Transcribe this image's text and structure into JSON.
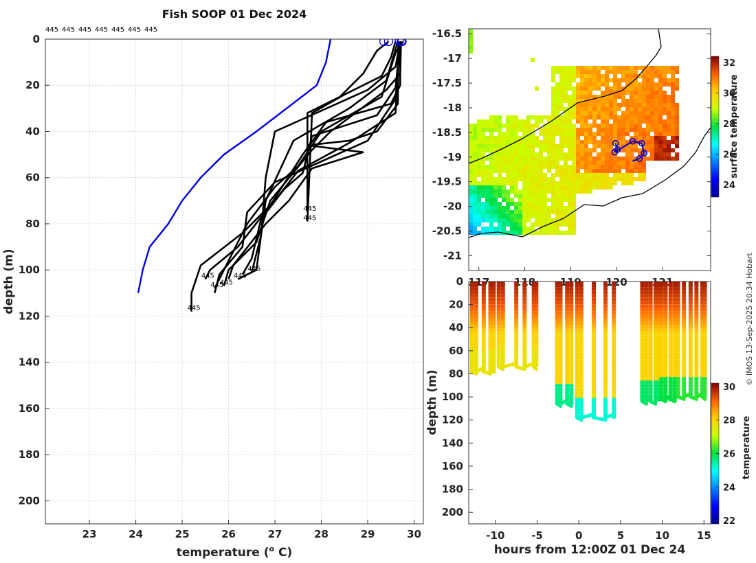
{
  "chart_data": [
    {
      "type": "line",
      "title": "Fish SOOP 01 Dec 2024",
      "xlabel": "temperature (",
      "xlabel_sup": "o",
      "xlabel_end": " C)",
      "ylabel": "depth (m)",
      "xlim": [
        22.05,
        30.2
      ],
      "ylim": [
        210,
        0
      ],
      "xticks": [
        23,
        24,
        25,
        26,
        27,
        28,
        29,
        30
      ],
      "yticks": [
        0,
        20,
        40,
        60,
        80,
        100,
        120,
        140,
        160,
        180,
        200
      ],
      "top_labels": [
        "445",
        "445",
        "445",
        "445",
        "445",
        "445",
        "445"
      ],
      "climatology": {
        "color": "#0000ee",
        "points": [
          [
            28.2,
            0
          ],
          [
            28.1,
            10
          ],
          [
            27.9,
            20
          ],
          [
            26.6,
            40
          ],
          [
            25.9,
            50
          ],
          [
            25.4,
            60
          ],
          [
            25.0,
            70
          ],
          [
            24.7,
            80
          ],
          [
            24.3,
            90
          ],
          [
            24.15,
            100
          ],
          [
            24.05,
            110
          ]
        ]
      },
      "profiles": [
        {
          "points": [
            [
              29.45,
              1
            ],
            [
              29.2,
              5
            ],
            [
              28.9,
              15
            ],
            [
              28.4,
              25
            ],
            [
              27.7,
              32
            ],
            [
              27.7,
              75
            ]
          ],
          "end_label": "445"
        },
        {
          "points": [
            [
              29.6,
              1
            ],
            [
              29.5,
              8
            ],
            [
              29.3,
              16
            ],
            [
              28.5,
              24
            ],
            [
              27.8,
              32
            ],
            [
              27.7,
              79
            ]
          ],
          "end_label": "445"
        },
        {
          "points": [
            [
              29.7,
              1
            ],
            [
              29.6,
              12
            ],
            [
              29.0,
              22
            ],
            [
              27.0,
              40
            ],
            [
              26.8,
              60
            ],
            [
              26.7,
              85
            ],
            [
              26.5,
              101
            ]
          ],
          "end_label": "445"
        },
        {
          "points": [
            [
              29.65,
              1
            ],
            [
              29.4,
              18
            ],
            [
              28.6,
              30
            ],
            [
              27.4,
              44
            ],
            [
              26.8,
              70
            ],
            [
              26.6,
              100
            ],
            [
              26.2,
              104
            ]
          ],
          "end_label": "445"
        },
        {
          "points": [
            [
              29.75,
              1
            ],
            [
              29.6,
              6
            ],
            [
              29.3,
              25
            ],
            [
              28.0,
              40
            ],
            [
              27.5,
              55
            ],
            [
              27.0,
              64
            ],
            [
              26.4,
              80
            ],
            [
              25.9,
              100
            ],
            [
              25.7,
              108
            ]
          ],
          "end_label": "445"
        },
        {
          "points": [
            [
              29.7,
              1
            ],
            [
              29.7,
              20
            ],
            [
              29.5,
              28
            ],
            [
              28.1,
              36
            ],
            [
              27.6,
              50
            ],
            [
              26.9,
              72
            ],
            [
              26.2,
              90
            ],
            [
              25.6,
              100
            ],
            [
              25.5,
              104
            ]
          ],
          "end_label": "445"
        },
        {
          "points": [
            [
              29.72,
              1
            ],
            [
              29.7,
              15
            ],
            [
              29.4,
              22
            ],
            [
              28.2,
              40
            ],
            [
              27.8,
              48
            ],
            [
              26.9,
              70
            ],
            [
              26.6,
              88
            ],
            [
              26.0,
              100
            ],
            [
              25.9,
              107
            ]
          ],
          "end_label": "445"
        },
        {
          "points": [
            [
              29.68,
              1
            ],
            [
              29.6,
              32
            ],
            [
              28.6,
              45
            ],
            [
              27.5,
              57
            ],
            [
              27.0,
              70
            ],
            [
              26.3,
              84
            ],
            [
              25.4,
              98
            ],
            [
              25.2,
              110
            ],
            [
              25.2,
              118
            ]
          ],
          "end_label": "445"
        },
        {
          "points": [
            [
              29.7,
              1
            ],
            [
              29.6,
              26
            ],
            [
              29.0,
              44
            ],
            [
              28.0,
              53
            ],
            [
              27.0,
              62
            ],
            [
              26.4,
              75
            ],
            [
              26.3,
              90
            ],
            [
              25.8,
              102
            ],
            [
              25.7,
              110
            ]
          ],
          "end_label": ""
        },
        {
          "points": [
            [
              29.66,
              1
            ],
            [
              29.65,
              28
            ],
            [
              29.2,
              40
            ],
            [
              28.6,
              44
            ],
            [
              27.7,
              46
            ],
            [
              28.9,
              49
            ],
            [
              27.8,
              56
            ],
            [
              27.3,
              70
            ],
            [
              26.8,
              80
            ],
            [
              26.1,
              98
            ],
            [
              26.0,
              104
            ]
          ],
          "end_label": ""
        },
        {
          "points": [
            [
              29.7,
              1
            ],
            [
              29.6,
              21
            ],
            [
              29.2,
              33
            ],
            [
              27.8,
              42
            ],
            [
              27.6,
              58
            ],
            [
              27.2,
              65
            ],
            [
              26.7,
              78
            ],
            [
              26.5,
              95
            ],
            [
              26.3,
              102
            ]
          ],
          "end_label": ""
        }
      ],
      "start_markers": [
        29.35,
        29.45,
        29.68,
        29.72,
        29.74
      ]
    },
    {
      "type": "heatmap",
      "title": "",
      "ylabel": "",
      "lon_ticks": [
        "117",
        "118",
        "119",
        "120",
        "121"
      ],
      "lat_ticks": [
        "-16.5",
        "-17",
        "-17.5",
        "-18",
        "-18.5",
        "-19",
        "-19.5",
        "-20",
        "-20.5",
        "-21"
      ],
      "lat_range": [
        -21.3,
        -16.4
      ],
      "colorbar": {
        "label": "surface temperature",
        "ticks": [
          "24",
          "26",
          "28",
          "30",
          "32"
        ],
        "range": [
          23.2,
          32.4
        ]
      },
      "track": [
        [
          119.98,
          -18.72
        ],
        [
          120.02,
          -18.85
        ],
        [
          119.96,
          -18.9
        ],
        [
          120.35,
          -18.68
        ],
        [
          120.55,
          -18.72
        ],
        [
          120.6,
          -18.92
        ],
        [
          120.5,
          -19.03
        ],
        [
          120.35,
          -19.08
        ]
      ],
      "track_markers": [
        [
          119.98,
          -18.72
        ],
        [
          120.02,
          -18.85
        ],
        [
          119.96,
          -18.9
        ],
        [
          120.35,
          -18.68
        ],
        [
          120.55,
          -18.72
        ],
        [
          120.6,
          -18.92
        ],
        [
          120.5,
          -19.03
        ]
      ]
    },
    {
      "type": "scatter",
      "xlabel": "hours from 12:00Z 01 Dec 24",
      "ylabel": "depth (m)",
      "xlim": [
        -13.2,
        15.8
      ],
      "ylim": [
        210,
        0
      ],
      "xticks": [
        -10,
        -5,
        0,
        5,
        10,
        15
      ],
      "yticks": [
        0,
        20,
        40,
        60,
        80,
        100,
        120,
        140,
        160,
        180,
        200
      ],
      "colorbar": {
        "label": "temperature",
        "ticks": [
          "22",
          "24",
          "26",
          "28",
          "30"
        ],
        "range": [
          21.8,
          30.2
        ]
      },
      "casts": [
        {
          "t": [
            -12.8,
            -12.3,
            -11.4,
            -10.6,
            -10.2
          ],
          "bottom": 78,
          "temp": 27.7
        },
        {
          "t": [
            -9.6,
            -9.1,
            -7.5,
            -6.5,
            -5.4,
            -5.1
          ],
          "bottom": 74,
          "temp": 27.7
        },
        {
          "t": [
            -2.6,
            -2.2,
            -1.4,
            -0.9
          ],
          "bottom": 106,
          "temp": 25.6
        },
        {
          "t": [
            -0.2,
            0.3,
            1.8,
            3.2,
            4.2
          ],
          "bottom": 118,
          "temp": 25.2
        },
        {
          "t": [
            7.6,
            8.1,
            8.6,
            9.2,
            9.5
          ],
          "bottom": 104,
          "temp": 25.8
        },
        {
          "t": [
            9.9,
            10.4,
            11.0,
            11.5
          ],
          "bottom": 102,
          "temp": 26.0
        },
        {
          "t": [
            11.9,
            12.6,
            13.4,
            14.1,
            14.8,
            15.1
          ],
          "bottom": 100,
          "temp": 26.2
        }
      ]
    }
  ],
  "credit": "© IMOS 13-Sep-2025 20:34 Hobart"
}
